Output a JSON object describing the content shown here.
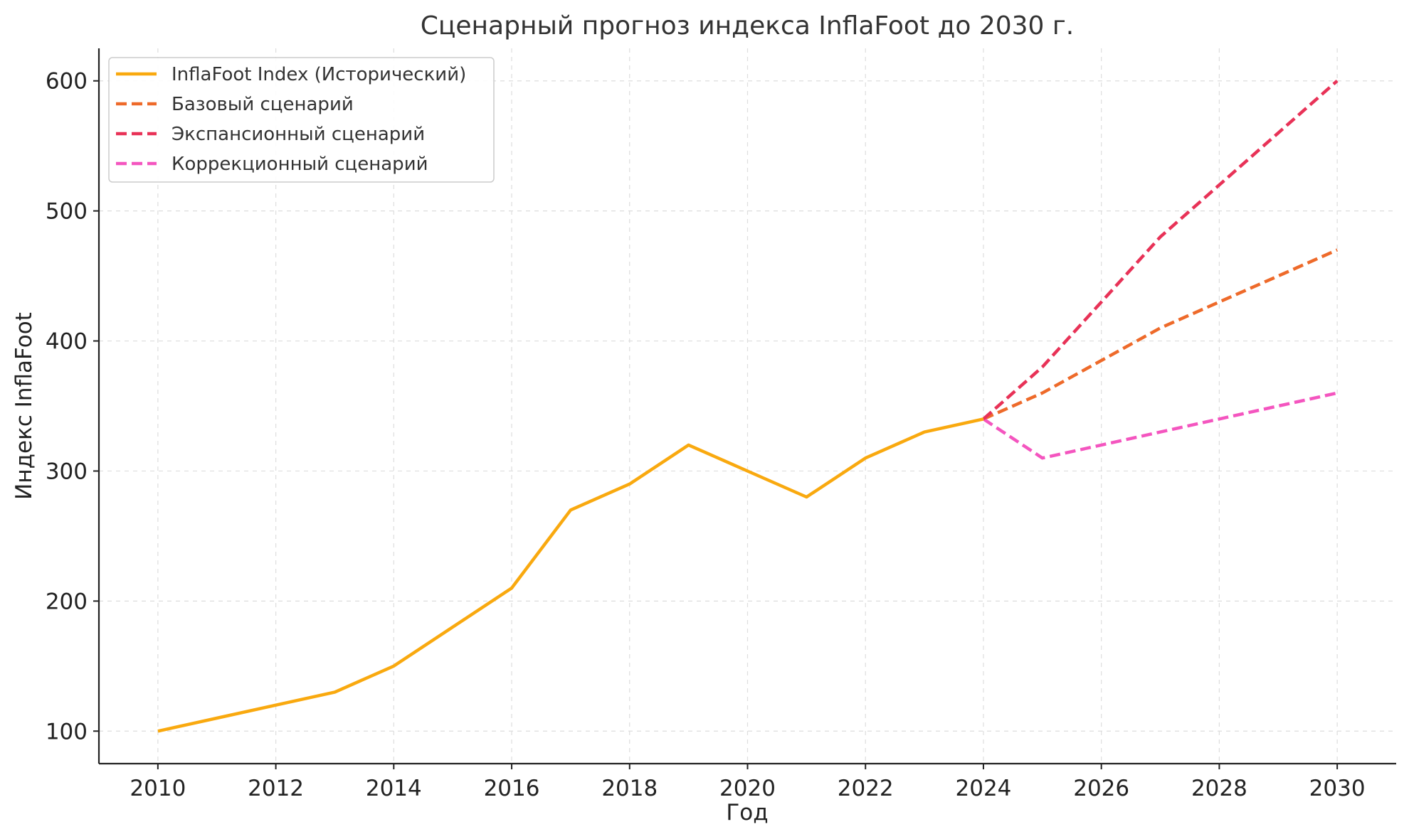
{
  "chart_data": {
    "type": "line",
    "title": "Сценарный прогноз индекса InflaFoot до 2030 г.",
    "xlabel": "Год",
    "ylabel": "Индекс InflaFoot",
    "xlim": [
      2009,
      2031
    ],
    "ylim": [
      75,
      625
    ],
    "xticks": [
      2010,
      2012,
      2014,
      2016,
      2018,
      2020,
      2022,
      2024,
      2026,
      2028,
      2030
    ],
    "yticks": [
      100,
      200,
      300,
      400,
      500,
      600
    ],
    "grid": true,
    "legend_position": "top-left",
    "series": [
      {
        "id": "historical",
        "name": "InflaFoot Index (Исторический)",
        "color": "#F9A90F",
        "style": "solid",
        "x": [
          2010,
          2011,
          2012,
          2013,
          2014,
          2015,
          2016,
          2017,
          2018,
          2019,
          2020,
          2021,
          2022,
          2023,
          2024
        ],
        "y": [
          100,
          110,
          120,
          130,
          150,
          180,
          210,
          270,
          290,
          320,
          300,
          280,
          310,
          330,
          340
        ]
      },
      {
        "id": "base",
        "name": "Базовый сценарий",
        "color": "#EE6A2A",
        "style": "dashed",
        "x": [
          2024,
          2025,
          2026,
          2027,
          2028,
          2029,
          2030
        ],
        "y": [
          340,
          360,
          385,
          410,
          430,
          450,
          470
        ]
      },
      {
        "id": "expansion",
        "name": "Экспансионный сценарий",
        "color": "#E83257",
        "style": "dashed",
        "x": [
          2024,
          2025,
          2026,
          2027,
          2028,
          2029,
          2030
        ],
        "y": [
          340,
          380,
          430,
          480,
          520,
          560,
          600
        ]
      },
      {
        "id": "correction",
        "name": "Коррекционный сценарий",
        "color": "#F455BF",
        "style": "dashed",
        "x": [
          2024,
          2025,
          2026,
          2027,
          2028,
          2029,
          2030
        ],
        "y": [
          340,
          310,
          320,
          330,
          340,
          350,
          360
        ]
      }
    ]
  }
}
